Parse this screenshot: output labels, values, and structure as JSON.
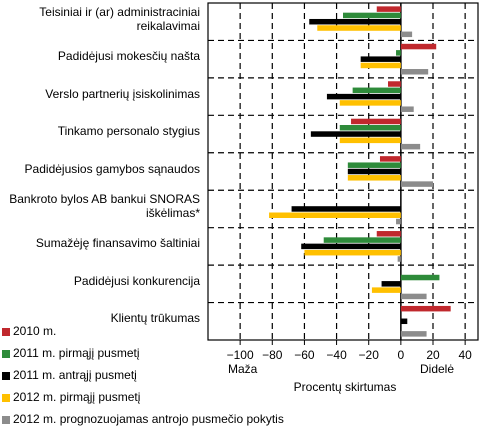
{
  "chart_data": {
    "type": "bar",
    "orientation": "horizontal",
    "categories": [
      "Teisiniai ir (ar) administraciniai\nreikalavimai",
      "Padidėjusi mokesčių našta",
      "Verslo partnerių įsiskolinimas",
      "Tinkamo personalo stygius",
      "Padidėjusios gamybos sąnaudos",
      "Bankroto bylos AB bankui SNORAS\niškėlimas*",
      "Sumažėję finansavimo šaltiniai",
      "Padidėjusi konkurencija",
      "Klientų trūkumas"
    ],
    "series": [
      {
        "name": "2010 m.",
        "color": "#c0282d",
        "values": [
          -15,
          22,
          -8,
          -31,
          -13,
          0,
          -15,
          0,
          31
        ]
      },
      {
        "name": "2011 m. pirmąjį pusmetį",
        "color": "#2e8b3a",
        "values": [
          -36,
          -3,
          -30,
          -38,
          -33,
          0,
          -48,
          24,
          0
        ]
      },
      {
        "name": "2011 m. antrąjį pusmetį",
        "color": "#000000",
        "values": [
          -57,
          -25,
          -46,
          -56,
          -33,
          -68,
          -62,
          -12,
          4
        ]
      },
      {
        "name": "2012 m. pirmąjį pusmetį",
        "color": "#ffc000",
        "values": [
          -52,
          -25,
          -38,
          -38,
          -33,
          -82,
          -60,
          -18,
          0
        ]
      },
      {
        "name": "2012 m. prognozuojamas antrojo pusmečio pokytis",
        "color": "#8c8c8c",
        "values": [
          7,
          17,
          8,
          12,
          20,
          -3,
          -2,
          16,
          16
        ]
      }
    ],
    "xlim": [
      -120,
      48
    ],
    "xticks": [
      {
        "value": -100,
        "label": "−100"
      },
      {
        "value": -80,
        "label": "−80"
      },
      {
        "value": -60,
        "label": "−60"
      },
      {
        "value": -40,
        "label": "−40"
      },
      {
        "value": -20,
        "label": "−20"
      },
      0,
      20,
      40
    ],
    "xlabel": "Procentų skirtumas",
    "annotations": [
      "Maža",
      "Didelė"
    ],
    "grid": true
  }
}
